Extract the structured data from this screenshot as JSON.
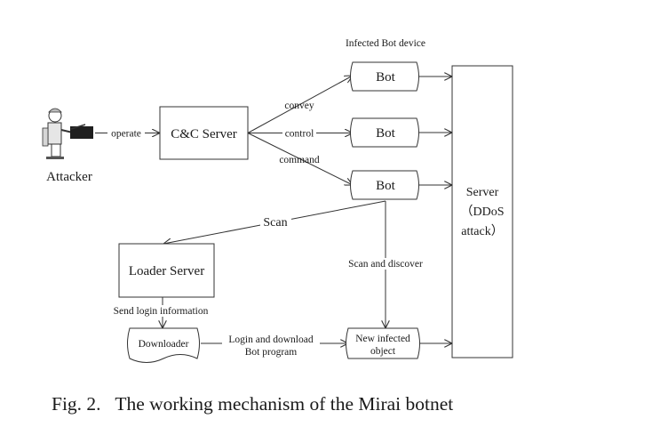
{
  "header_label": "Infected Bot device",
  "nodes": {
    "attacker": "Attacker",
    "cnc_server": "C&C Server",
    "bot_1": "Bot",
    "bot_2": "Bot",
    "bot_3": "Bot",
    "server_line1": "Server",
    "server_line2": "（DDoS",
    "server_line3": "attack）",
    "loader_server": "Loader Server",
    "downloader": "Downloader",
    "new_object_line1": "New infected",
    "new_object_line2": "object"
  },
  "edges": {
    "operate": "operate",
    "convey": "convey",
    "control": "control",
    "command": "command",
    "scan": "Scan",
    "scan_discover": "Scan and discover",
    "send_login": "Send login information",
    "login_download_line1": "Login and download",
    "login_download_line2": "Bot program"
  },
  "caption": {
    "label": "Fig. 2.",
    "text": "The working mechanism of the Mirai botnet"
  },
  "icons": {
    "attacker": "person-at-computer-icon"
  }
}
